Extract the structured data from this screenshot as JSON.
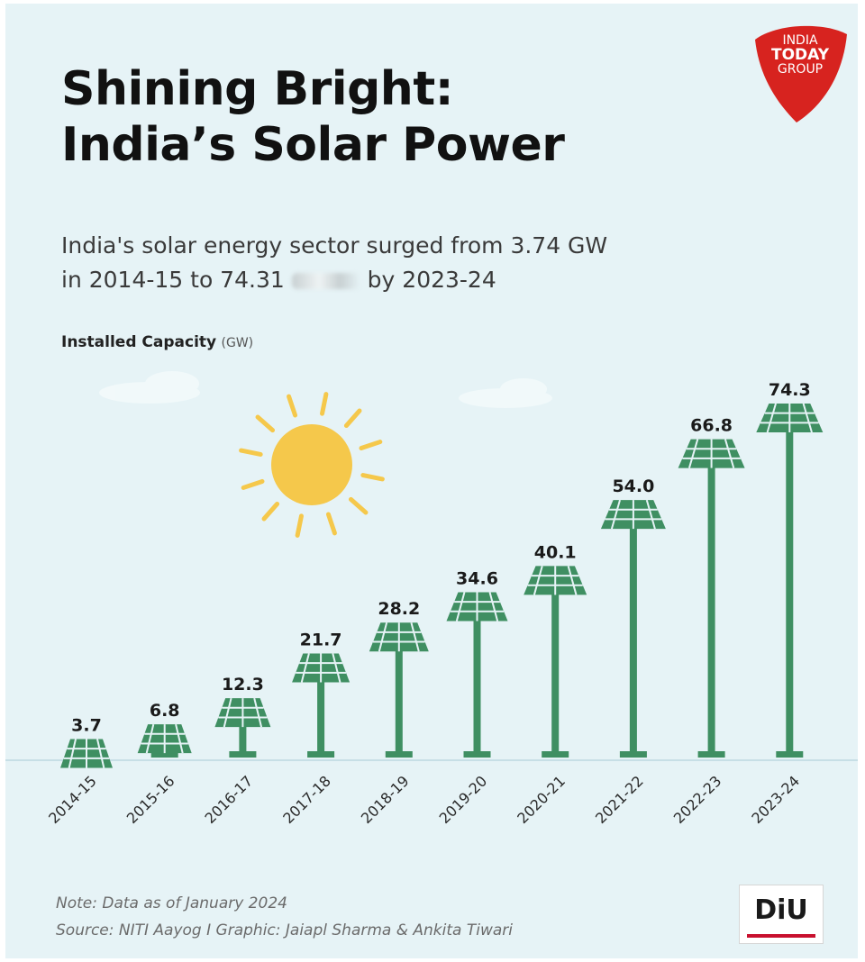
{
  "header": {
    "title_line1": "Shining Bright:",
    "title_line2": "India’s Solar Power",
    "subtitle_line1": "India's solar energy sector surged from 3.74 GW",
    "subtitle_line2_a": "in 2014-15 to 74.31",
    "subtitle_line2_b": "by 2023-24"
  },
  "badge": {
    "line1": "INDIA",
    "line2": "TODAY",
    "line3": "GROUP",
    "color": "#d7231f"
  },
  "axis": {
    "label_bold": "Installed Capacity",
    "label_unit": "(GW)"
  },
  "chart_data": {
    "type": "bar",
    "categories": [
      "2014-15",
      "2015-16",
      "2016-17",
      "2017-18",
      "2018-19",
      "2019-20",
      "2020-21",
      "2021-22",
      "2022-23",
      "2023-24"
    ],
    "values": [
      3.7,
      6.8,
      12.3,
      21.7,
      28.2,
      34.6,
      40.1,
      54.0,
      66.8,
      74.3
    ],
    "value_labels": [
      "3.7",
      "6.8",
      "12.3",
      "21.7",
      "28.2",
      "34.6",
      "40.1",
      "54.0",
      "66.8",
      "74.3"
    ],
    "ylabel": "Installed Capacity (GW)",
    "ylim": [
      0,
      80
    ],
    "grid": false,
    "legend": "none",
    "bar_color": "#3f8f62"
  },
  "footer": {
    "note": "Note: Data as of January 2024",
    "source": "Source: NITI Aayog  I Graphic: Jaiapl Sharma & Ankita Tiwari",
    "logo": "DiU"
  }
}
